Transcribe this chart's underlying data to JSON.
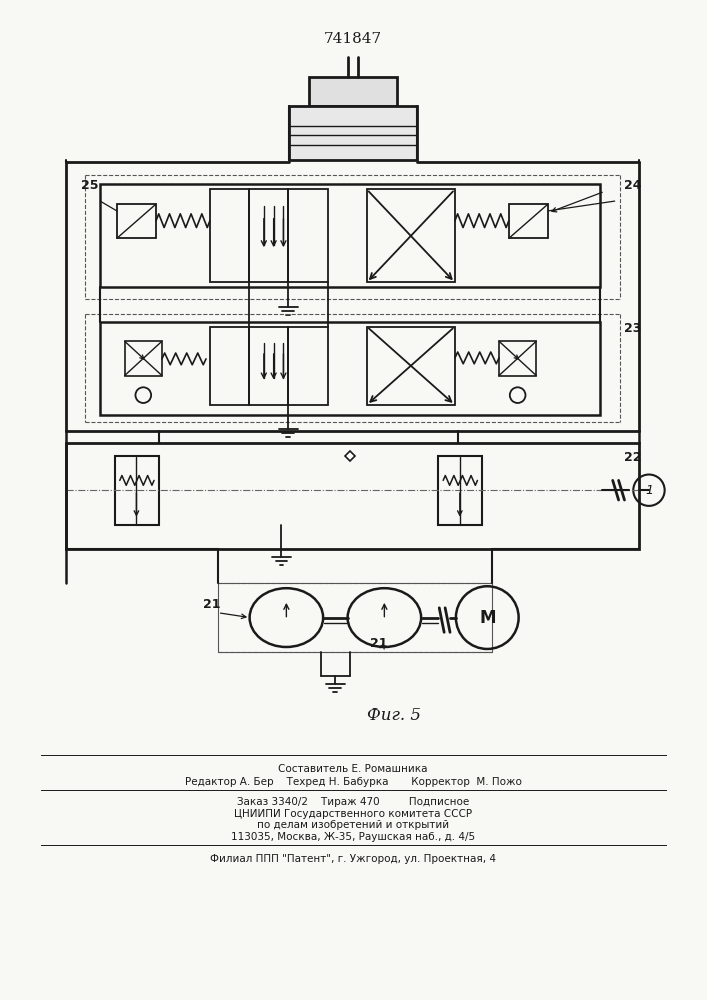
{
  "title": "741847",
  "fig_label": "Фиг. 5",
  "bg_color": "#f8f8f4",
  "line_color": "#1a1a1a",
  "footer_lines": [
    "Составитель Е. Ромашника",
    "Редактор А. Бер    Техред Н. Бабурка       Корректор  М. Пожо",
    "Заказ 3340/2    Тираж 470         Подписное",
    "ЦНИИПИ Государственного комитета СССР",
    "по делам изобретений и открытий",
    "113035, Москва, Ж-35, Раушская наб., д. 4/5",
    "Филиал ППП \"Патент\", г. Ужгород, ул. Проектная, 4"
  ]
}
